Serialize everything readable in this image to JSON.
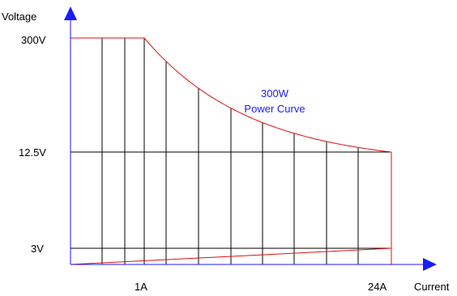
{
  "chart_data": {
    "type": "line",
    "xlabel": "Current",
    "ylabel": "Voltage",
    "x_tick_labels": [
      {
        "value": 1,
        "label": "1A"
      },
      {
        "value": 24,
        "label": "24A"
      }
    ],
    "y_tick_labels": [
      {
        "value": 300,
        "label": "300V"
      },
      {
        "value": 12.5,
        "label": "12.5V"
      },
      {
        "value": 3,
        "label": "3V"
      }
    ],
    "annotation": {
      "line1": "300W",
      "line2": "Power Curve"
    },
    "series": [
      {
        "points": [
          {
            "x": 0,
            "y": 300
          },
          {
            "x": 1,
            "y": 300
          },
          {
            "x": 2,
            "y": 150
          },
          {
            "x": 4,
            "y": 75
          },
          {
            "x": 8,
            "y": 37.5
          },
          {
            "x": 12,
            "y": 25
          },
          {
            "x": 16,
            "y": 18.75
          },
          {
            "x": 20,
            "y": 15
          },
          {
            "x": 24,
            "y": 12.5
          }
        ]
      },
      {
        "points": [
          {
            "x": 0,
            "y": 0
          },
          {
            "x": 24,
            "y": 3
          }
        ]
      }
    ],
    "colors": {
      "axis": "#1a1aff",
      "curve": "#dd1111",
      "grid": "#000000",
      "annotation": "#1a1aff"
    }
  }
}
